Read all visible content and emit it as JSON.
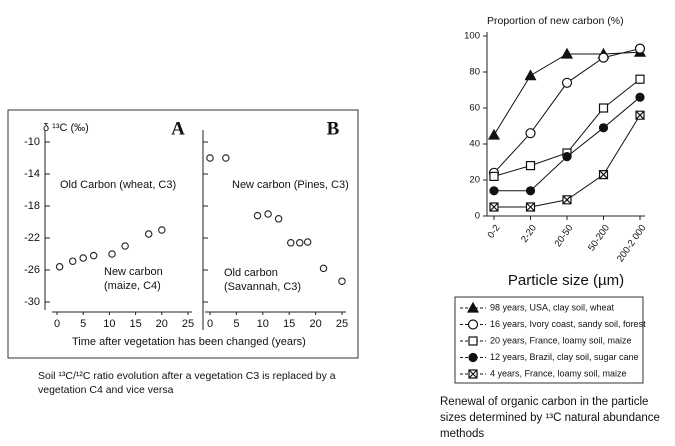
{
  "chart_data": [
    {
      "type": "scatter",
      "title": "A",
      "y_label": "δ ¹³C (‰)",
      "x_label": "Time after vegetation has been changed (years)",
      "x": [
        0.5,
        3,
        5,
        7,
        10.5,
        13,
        17.5,
        20
      ],
      "values": [
        -25.6,
        -24.9,
        -24.5,
        -24.2,
        -24,
        -23,
        -21.5,
        -21
      ],
      "xlim": [
        0,
        25
      ],
      "ylim": [
        -30,
        -10
      ],
      "xticks": [
        0,
        5,
        10,
        15,
        20,
        25
      ],
      "yticks": [
        -10,
        -14,
        -18,
        -22,
        -26,
        -30
      ],
      "annotations": [
        "Old Carbon (wheat, C3)",
        "New carbon (maize, C4)"
      ]
    },
    {
      "type": "scatter",
      "title": "B",
      "x": [
        0,
        3,
        9,
        11,
        13,
        15.3,
        17,
        18.5,
        21.5,
        25
      ],
      "values": [
        -12,
        -12,
        -19.2,
        -19,
        -19.6,
        -22.6,
        -22.6,
        -22.5,
        -25.8,
        -27.4
      ],
      "xlim": [
        0,
        25
      ],
      "ylim": [
        -30,
        -10
      ],
      "xticks": [
        0,
        5,
        10,
        15,
        20,
        25
      ],
      "annotations": [
        "New carbon (Pines, C3)",
        "Old carbon (Savannah, C3)"
      ]
    },
    {
      "type": "line",
      "title": "Proportion of new carbon (%)",
      "x_label": "Particle size (µm)",
      "categories": [
        "0-2",
        "2-20",
        "20-50",
        "50-200",
        "200-2 000"
      ],
      "ylim": [
        0,
        100
      ],
      "yticks": [
        0,
        20,
        40,
        60,
        80,
        100
      ],
      "series": [
        {
          "name": "98 years, USA, clay soil, wheat",
          "color": "#111111",
          "marker": "triangle",
          "values": [
            45,
            78,
            90,
            90,
            91
          ]
        },
        {
          "name": "16 years, Ivory coast, sandy soil, forest",
          "color": "#111111",
          "marker": "circle",
          "values": [
            24,
            46,
            74,
            88,
            93
          ]
        },
        {
          "name": "20 years, France, loamy soil, maize",
          "color": "#111111",
          "marker": "square",
          "values": [
            22,
            28,
            35,
            60,
            76
          ]
        },
        {
          "name": "12 years, Brazil, clay soil, sugar cane",
          "color": "#111111",
          "marker": "filled-circle",
          "values": [
            14,
            14,
            33,
            49,
            66
          ]
        },
        {
          "name": "4 years, France, loamy soil, maize",
          "color": "#111111",
          "marker": "crossed-square",
          "values": [
            5,
            5,
            9,
            23,
            56
          ]
        }
      ]
    }
  ],
  "captions": [
    "Soil ¹³C/¹²C ratio evolution after a vegetation C3 is replaced by a vegetation C4 and vice versa",
    "Renewal of organic carbon in the particle sizes determined by ¹³C natural abundance methods"
  ]
}
